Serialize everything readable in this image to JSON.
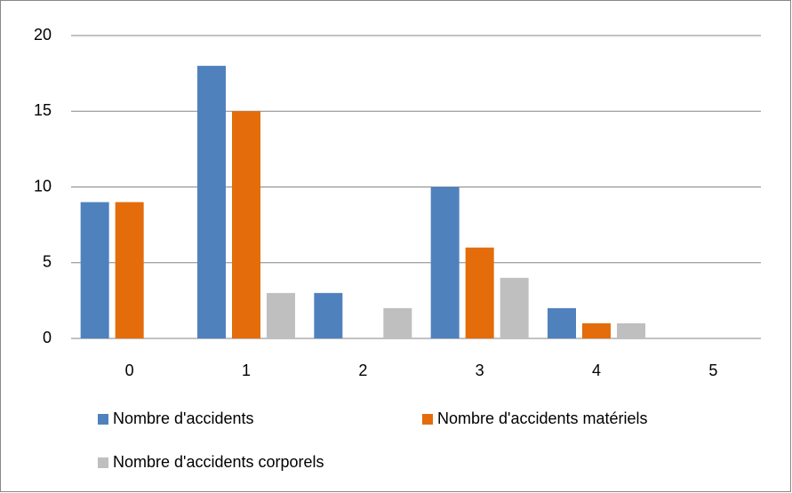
{
  "chart_data": {
    "type": "bar",
    "categories": [
      "0",
      "1",
      "2",
      "3",
      "4",
      "5"
    ],
    "series": [
      {
        "name": "Nombre d'accidents",
        "color": "#4f81bd",
        "values": [
          9,
          18,
          3,
          10,
          2,
          0
        ]
      },
      {
        "name": "Nombre d'accidents matériels",
        "color": "#e46c0a",
        "values": [
          9,
          15,
          0,
          6,
          1,
          0
        ]
      },
      {
        "name": "Nombre d'accidents corporels",
        "color": "#bfbfbf",
        "values": [
          0,
          3,
          2,
          4,
          1,
          0
        ]
      }
    ],
    "ylim": [
      0,
      20
    ],
    "yticks": [
      0,
      5,
      10,
      15,
      20
    ],
    "grid": true,
    "legend": "bottom"
  }
}
